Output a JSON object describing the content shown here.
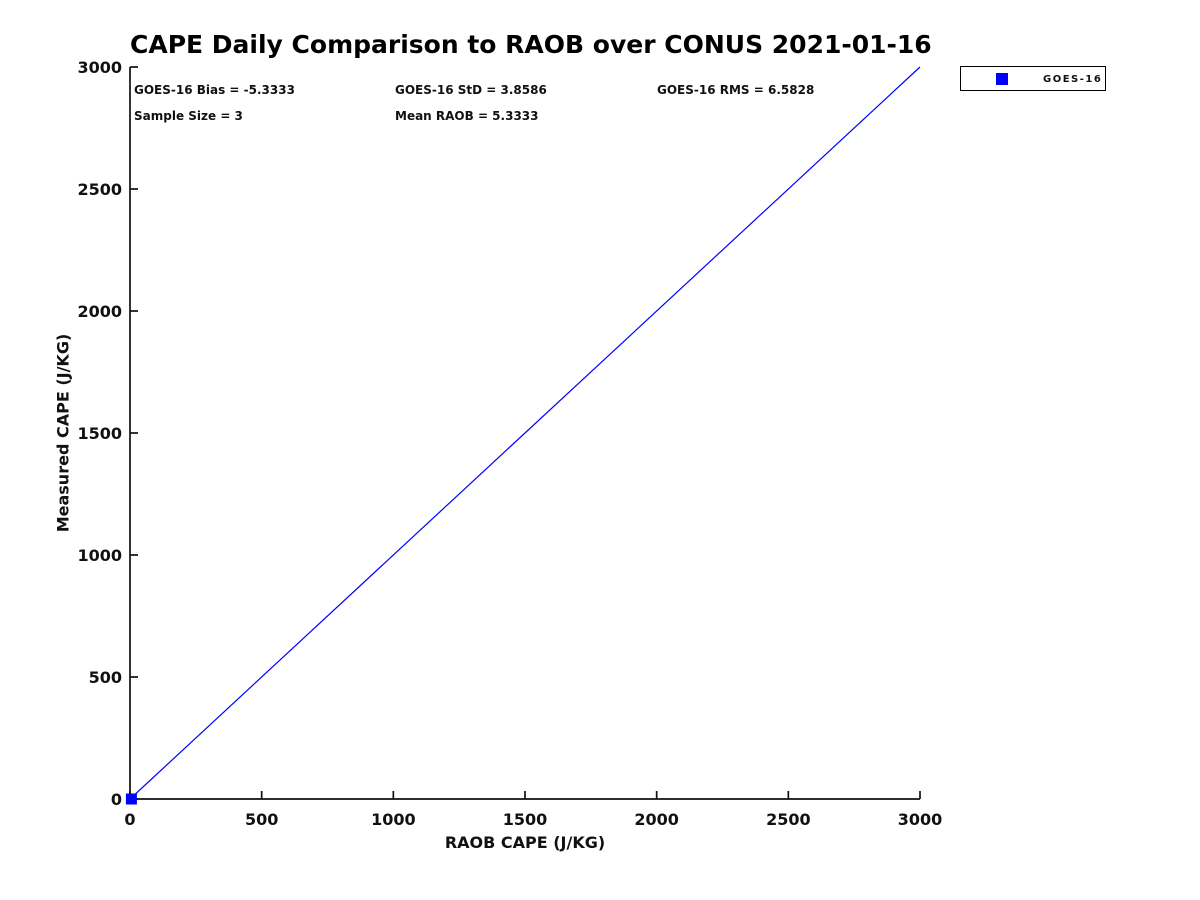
{
  "chart_data": {
    "type": "scatter",
    "title": "CAPE Daily Comparison to RAOB over CONUS 2021-01-16",
    "xlabel": "RAOB CAPE (J/KG)",
    "ylabel": "Measured CAPE (J/KG)",
    "xlim": [
      0,
      3000
    ],
    "ylim": [
      0,
      3000
    ],
    "xticks": [
      0,
      500,
      1000,
      1500,
      2000,
      2500,
      3000
    ],
    "yticks": [
      0,
      500,
      1000,
      1500,
      2000,
      2500,
      3000
    ],
    "grid": false,
    "legend_position": "outside-top-right",
    "axis_color": "#111111",
    "series": [
      {
        "name": "GOES-16",
        "type": "scatter",
        "marker": "square",
        "color": "#0000ff",
        "points": [
          [
            5.3333,
            0
          ]
        ]
      }
    ],
    "reference_line": {
      "from": [
        0,
        0
      ],
      "to": [
        3000,
        3000
      ],
      "color": "#0000ff",
      "width": 1.2
    },
    "annotations": [
      {
        "text": "GOES-16 Bias = -5.3333"
      },
      {
        "text": "GOES-16 StD = 3.8586"
      },
      {
        "text": "GOES-16 RMS = 6.5828"
      },
      {
        "text": "Sample Size = 3"
      },
      {
        "text": "Mean RAOB = 5.3333"
      }
    ]
  }
}
